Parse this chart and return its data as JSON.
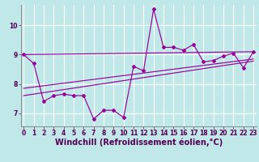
{
  "xlabel": "Windchill (Refroidissement éolien,°C)",
  "bg_color": "#c0e8e8",
  "line_color": "#990099",
  "grid_color": "#b0dede",
  "x": [
    0,
    1,
    2,
    3,
    4,
    5,
    6,
    7,
    8,
    9,
    10,
    11,
    12,
    13,
    14,
    15,
    16,
    17,
    18,
    19,
    20,
    21,
    22,
    23
  ],
  "y_main": [
    9.0,
    8.7,
    7.4,
    7.6,
    7.65,
    7.6,
    7.6,
    6.8,
    7.1,
    7.1,
    6.85,
    8.6,
    8.45,
    10.55,
    9.25,
    9.25,
    9.15,
    9.35,
    8.75,
    8.8,
    8.95,
    9.05,
    8.55,
    9.1
  ],
  "reg_lines": [
    {
      "x0": 0,
      "y0": 9.0,
      "x1": 23,
      "y1": 9.1
    },
    {
      "x0": 0,
      "y0": 7.85,
      "x1": 23,
      "y1": 8.85
    },
    {
      "x0": 0,
      "y0": 7.6,
      "x1": 23,
      "y1": 8.78
    }
  ],
  "xlim": [
    -0.3,
    23.3
  ],
  "ylim": [
    6.55,
    10.7
  ],
  "yticks": [
    7,
    8,
    9,
    10
  ],
  "xticks": [
    0,
    1,
    2,
    3,
    4,
    5,
    6,
    7,
    8,
    9,
    10,
    11,
    12,
    13,
    14,
    15,
    16,
    17,
    18,
    19,
    20,
    21,
    22,
    23
  ],
  "tick_fontsize": 5.5,
  "xlabel_fontsize": 7.0,
  "spine_color": "#888888"
}
